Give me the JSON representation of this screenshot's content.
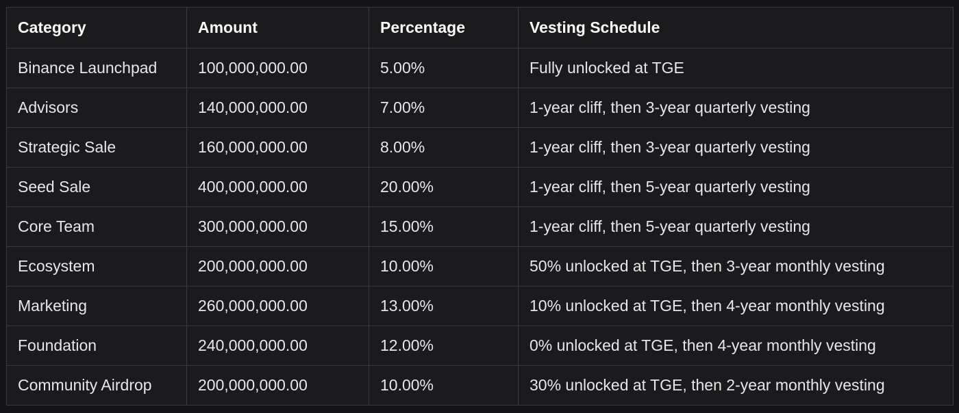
{
  "colors": {
    "page_background": "#141416",
    "cell_background": "#1b1b1d",
    "border": "#3a3a3c",
    "header_text": "#fafafa",
    "body_text": "#e7e7e9"
  },
  "table": {
    "columns": [
      "Category",
      "Amount",
      "Percentage",
      "Vesting Schedule"
    ],
    "rows": [
      {
        "category": "Binance Launchpad",
        "amount": "100,000,000.00",
        "percentage": "5.00%",
        "vesting": "Fully unlocked at TGE"
      },
      {
        "category": "Advisors",
        "amount": "140,000,000.00",
        "percentage": "7.00%",
        "vesting": "1-year cliff, then 3-year quarterly vesting"
      },
      {
        "category": "Strategic Sale",
        "amount": "160,000,000.00",
        "percentage": "8.00%",
        "vesting": "1-year cliff, then 3-year quarterly vesting"
      },
      {
        "category": "Seed Sale",
        "amount": "400,000,000.00",
        "percentage": "20.00%",
        "vesting": "1-year cliff, then 5-year quarterly vesting"
      },
      {
        "category": "Core Team",
        "amount": "300,000,000.00",
        "percentage": "15.00%",
        "vesting": "1-year cliff, then 5-year quarterly vesting"
      },
      {
        "category": "Ecosystem",
        "amount": "200,000,000.00",
        "percentage": "10.00%",
        "vesting": "50% unlocked at TGE, then 3-year monthly vesting"
      },
      {
        "category": "Marketing",
        "amount": "260,000,000.00",
        "percentage": "13.00%",
        "vesting": "10% unlocked at TGE, then 4-year monthly vesting"
      },
      {
        "category": "Foundation",
        "amount": "240,000,000.00",
        "percentage": "12.00%",
        "vesting": "0% unlocked at TGE, then 4-year monthly vesting"
      },
      {
        "category": "Community Airdrop",
        "amount": "200,000,000.00",
        "percentage": "10.00%",
        "vesting": "30% unlocked at TGE, then 2-year monthly vesting"
      }
    ]
  },
  "chart_data": {
    "type": "table",
    "columns": [
      "Category",
      "Amount",
      "Percentage",
      "Vesting Schedule"
    ],
    "categories": [
      "Binance Launchpad",
      "Advisors",
      "Strategic Sale",
      "Seed Sale",
      "Core Team",
      "Ecosystem",
      "Marketing",
      "Foundation",
      "Community Airdrop"
    ],
    "series": [
      {
        "name": "Amount",
        "values": [
          100000000,
          140000000,
          160000000,
          400000000,
          300000000,
          200000000,
          260000000,
          240000000,
          200000000
        ]
      },
      {
        "name": "Percentage",
        "values": [
          5.0,
          7.0,
          8.0,
          20.0,
          15.0,
          10.0,
          13.0,
          12.0,
          10.0
        ]
      }
    ],
    "vesting_schedules": [
      "Fully unlocked at TGE",
      "1-year cliff, then 3-year quarterly vesting",
      "1-year cliff, then 3-year quarterly vesting",
      "1-year cliff, then 5-year quarterly vesting",
      "1-year cliff, then 5-year quarterly vesting",
      "50% unlocked at TGE, then 3-year monthly vesting",
      "10% unlocked at TGE, then 4-year monthly vesting",
      "0% unlocked at TGE, then 4-year monthly vesting",
      "30% unlocked at TGE, then 2-year monthly vesting"
    ]
  }
}
